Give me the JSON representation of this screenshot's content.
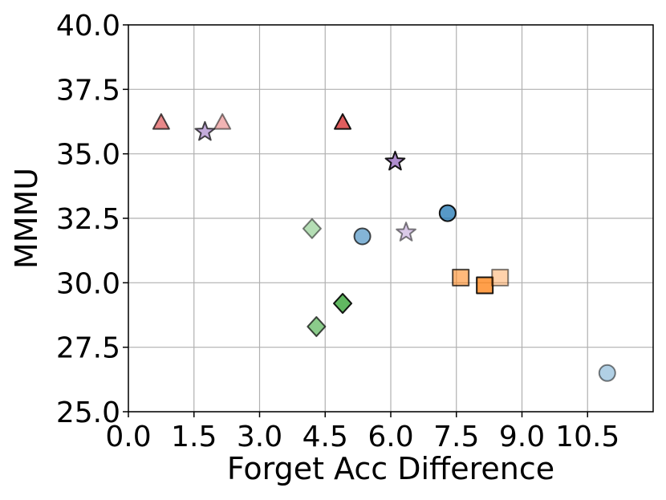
{
  "chart_data": {
    "type": "scatter",
    "title": "",
    "xlabel": "Forget Acc Difference",
    "ylabel": "MMMU",
    "xlim": [
      0,
      12
    ],
    "ylim": [
      25,
      40
    ],
    "x_ticks": [
      "0.0",
      "1.5",
      "3.0",
      "4.5",
      "6.0",
      "7.5",
      "9.0",
      "10.5"
    ],
    "y_ticks": [
      "25.0",
      "27.5",
      "30.0",
      "32.5",
      "35.0",
      "37.5",
      "40.0"
    ],
    "grid": true,
    "legend": "none",
    "points": [
      {
        "x": 0.75,
        "y": 36.2,
        "marker": "triangle",
        "color": "#d62728",
        "alpha": 0.55
      },
      {
        "x": 2.15,
        "y": 36.2,
        "marker": "triangle",
        "color": "#d62728",
        "alpha": 0.35
      },
      {
        "x": 4.9,
        "y": 36.2,
        "marker": "triangle",
        "color": "#d62728",
        "alpha": 0.75
      },
      {
        "x": 1.75,
        "y": 35.85,
        "marker": "star",
        "color": "#9467bd",
        "alpha": 0.55
      },
      {
        "x": 6.1,
        "y": 34.7,
        "marker": "star",
        "color": "#9467bd",
        "alpha": 0.75
      },
      {
        "x": 6.35,
        "y": 31.95,
        "marker": "star",
        "color": "#9467bd",
        "alpha": 0.35
      },
      {
        "x": 7.3,
        "y": 32.7,
        "marker": "circle",
        "color": "#1f77b4",
        "alpha": 0.75
      },
      {
        "x": 5.35,
        "y": 31.8,
        "marker": "circle",
        "color": "#1f77b4",
        "alpha": 0.55
      },
      {
        "x": 10.95,
        "y": 26.5,
        "marker": "circle",
        "color": "#1f77b4",
        "alpha": 0.35
      },
      {
        "x": 4.2,
        "y": 32.1,
        "marker": "diamond",
        "color": "#2ca02c",
        "alpha": 0.35
      },
      {
        "x": 4.9,
        "y": 29.2,
        "marker": "diamond",
        "color": "#2ca02c",
        "alpha": 0.75
      },
      {
        "x": 4.3,
        "y": 28.3,
        "marker": "diamond",
        "color": "#2ca02c",
        "alpha": 0.55
      },
      {
        "x": 7.6,
        "y": 30.2,
        "marker": "square",
        "color": "#ff7f0e",
        "alpha": 0.55
      },
      {
        "x": 8.15,
        "y": 29.9,
        "marker": "square",
        "color": "#ff7f0e",
        "alpha": 0.75
      },
      {
        "x": 8.5,
        "y": 30.2,
        "marker": "square",
        "color": "#ff7f0e",
        "alpha": 0.35
      }
    ]
  }
}
